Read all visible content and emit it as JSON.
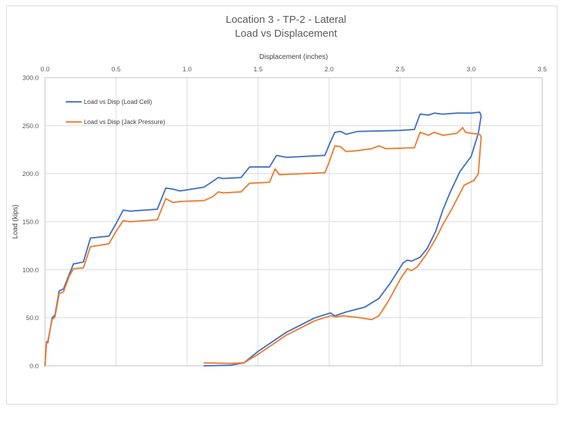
{
  "chart_data": {
    "type": "line",
    "title": "Location 3 - TP-2 - Lateral",
    "subtitle": "Load vs Displacement",
    "xlabel": "Displacement (inches)",
    "ylabel": "Load (kips)",
    "xlim": [
      0,
      3.5
    ],
    "ylim": [
      0,
      300
    ],
    "x_ticks": [
      "0.0",
      "0.5",
      "1.0",
      "1.5",
      "2.0",
      "2.5",
      "3.0",
      "3.5"
    ],
    "y_ticks": [
      "0.0",
      "50.0",
      "100.0",
      "150.0",
      "200.0",
      "250.0",
      "300.0"
    ],
    "x_axis_position": "top",
    "grid": true,
    "legend_position": "top-left",
    "series": [
      {
        "name": "Load vs Disp (Load Cell)",
        "color": "#4472c4",
        "points": [
          [
            0,
            0
          ],
          [
            0.01,
            25
          ],
          [
            0.02,
            24
          ],
          [
            0.05,
            50
          ],
          [
            0.07,
            53
          ],
          [
            0.1,
            78
          ],
          [
            0.13,
            80
          ],
          [
            0.17,
            95
          ],
          [
            0.2,
            106
          ],
          [
            0.27,
            108
          ],
          [
            0.32,
            133
          ],
          [
            0.45,
            135
          ],
          [
            0.5,
            148
          ],
          [
            0.55,
            162
          ],
          [
            0.6,
            161
          ],
          [
            0.79,
            163
          ],
          [
            0.85,
            185
          ],
          [
            0.9,
            184
          ],
          [
            0.95,
            182
          ],
          [
            1.12,
            186
          ],
          [
            1.18,
            192
          ],
          [
            1.22,
            196
          ],
          [
            1.25,
            195
          ],
          [
            1.38,
            196
          ],
          [
            1.44,
            207
          ],
          [
            1.58,
            207
          ],
          [
            1.63,
            219
          ],
          [
            1.7,
            217
          ],
          [
            1.97,
            219
          ],
          [
            2.0,
            230
          ],
          [
            2.04,
            243
          ],
          [
            2.08,
            244
          ],
          [
            2.12,
            241
          ],
          [
            2.2,
            244
          ],
          [
            2.5,
            245
          ],
          [
            2.6,
            246
          ],
          [
            2.64,
            262
          ],
          [
            2.7,
            261
          ],
          [
            2.74,
            263
          ],
          [
            2.8,
            262
          ],
          [
            2.9,
            263
          ],
          [
            3.0,
            263
          ],
          [
            3.06,
            264
          ],
          [
            3.07,
            260
          ],
          [
            3.05,
            242
          ],
          [
            3.0,
            218
          ],
          [
            2.92,
            202
          ],
          [
            2.85,
            180
          ],
          [
            2.8,
            162
          ],
          [
            2.75,
            140
          ],
          [
            2.69,
            122
          ],
          [
            2.64,
            113
          ],
          [
            2.58,
            109
          ],
          [
            2.55,
            110
          ],
          [
            2.52,
            107
          ],
          [
            2.43,
            86
          ],
          [
            2.35,
            70
          ],
          [
            2.25,
            61
          ],
          [
            2.12,
            56
          ],
          [
            2.06,
            53
          ],
          [
            2.04,
            52
          ],
          [
            2.02,
            54
          ],
          [
            2.01,
            55
          ],
          [
            1.9,
            50
          ],
          [
            1.7,
            35
          ],
          [
            1.5,
            15
          ],
          [
            1.4,
            3
          ],
          [
            1.3,
            0.5
          ],
          [
            1.12,
            0
          ]
        ]
      },
      {
        "name": "Load vs Disp (Jack Pressure)",
        "color": "#ed7d31",
        "points": [
          [
            0,
            0
          ],
          [
            0.01,
            25
          ],
          [
            0.02,
            26
          ],
          [
            0.05,
            48
          ],
          [
            0.07,
            51
          ],
          [
            0.1,
            75
          ],
          [
            0.13,
            77
          ],
          [
            0.17,
            93
          ],
          [
            0.2,
            101
          ],
          [
            0.27,
            102
          ],
          [
            0.32,
            124
          ],
          [
            0.45,
            127
          ],
          [
            0.5,
            140
          ],
          [
            0.55,
            151
          ],
          [
            0.6,
            150
          ],
          [
            0.79,
            152
          ],
          [
            0.85,
            174
          ],
          [
            0.9,
            170
          ],
          [
            0.95,
            171
          ],
          [
            1.12,
            172
          ],
          [
            1.18,
            176
          ],
          [
            1.22,
            181
          ],
          [
            1.25,
            180
          ],
          [
            1.38,
            181
          ],
          [
            1.44,
            190
          ],
          [
            1.58,
            191
          ],
          [
            1.62,
            205
          ],
          [
            1.65,
            199
          ],
          [
            1.97,
            201
          ],
          [
            2.0,
            212
          ],
          [
            2.04,
            229
          ],
          [
            2.08,
            228
          ],
          [
            2.12,
            223
          ],
          [
            2.2,
            224
          ],
          [
            2.3,
            226
          ],
          [
            2.35,
            229
          ],
          [
            2.4,
            226
          ],
          [
            2.6,
            227
          ],
          [
            2.64,
            243
          ],
          [
            2.7,
            240
          ],
          [
            2.74,
            243
          ],
          [
            2.8,
            240
          ],
          [
            2.9,
            242
          ],
          [
            2.94,
            248
          ],
          [
            2.96,
            243
          ],
          [
            3.0,
            242
          ],
          [
            3.06,
            241
          ],
          [
            3.07,
            238
          ],
          [
            3.05,
            200
          ],
          [
            3.02,
            193
          ],
          [
            2.95,
            188
          ],
          [
            2.87,
            165
          ],
          [
            2.8,
            147
          ],
          [
            2.75,
            132
          ],
          [
            2.68,
            115
          ],
          [
            2.62,
            103
          ],
          [
            2.58,
            99
          ],
          [
            2.55,
            101
          ],
          [
            2.5,
            90
          ],
          [
            2.42,
            68
          ],
          [
            2.35,
            52
          ],
          [
            2.3,
            48
          ],
          [
            2.22,
            50
          ],
          [
            2.1,
            52
          ],
          [
            2.05,
            51
          ],
          [
            2.01,
            52
          ],
          [
            1.9,
            47
          ],
          [
            1.7,
            32
          ],
          [
            1.5,
            12
          ],
          [
            1.4,
            3
          ],
          [
            1.3,
            2.5
          ],
          [
            1.12,
            3
          ]
        ]
      }
    ]
  }
}
